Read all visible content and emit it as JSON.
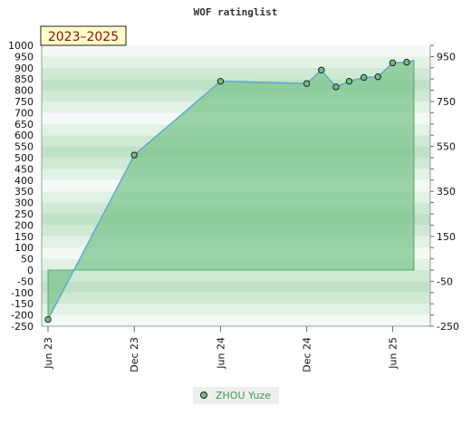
{
  "chart_data": {
    "type": "area",
    "title": "WOF ratinglist",
    "badge": "2023–2025",
    "series": [
      {
        "name": "ZHOU Yuze",
        "x": [
          "2023-06",
          "2023-12",
          "2024-06",
          "2024-12",
          "2025-01",
          "2025-02",
          "2025-03",
          "2025-04",
          "2025-05",
          "2025-06",
          "2025-07"
        ],
        "values": [
          -220,
          512,
          840,
          830,
          890,
          815,
          840,
          857,
          860,
          922,
          925
        ],
        "color": "#59a4d8",
        "fill": "#7cc48f"
      }
    ],
    "x_ticks": [
      "Jun 23",
      "Dec 23",
      "Jun 24",
      "Dec 24",
      "Jun 25"
    ],
    "y_left": {
      "ylim": [
        -250,
        1000
      ],
      "step": 50,
      "ticks": [
        1000,
        950,
        900,
        850,
        800,
        750,
        700,
        650,
        600,
        550,
        500,
        450,
        400,
        350,
        300,
        250,
        200,
        150,
        100,
        50,
        0,
        -50,
        -100,
        -150,
        -200,
        -250
      ]
    },
    "y_right": {
      "ticks": [
        950,
        750,
        550,
        350,
        150,
        -50,
        -250
      ]
    },
    "baseline": 0,
    "grid": true,
    "legend": "bottom-center"
  }
}
